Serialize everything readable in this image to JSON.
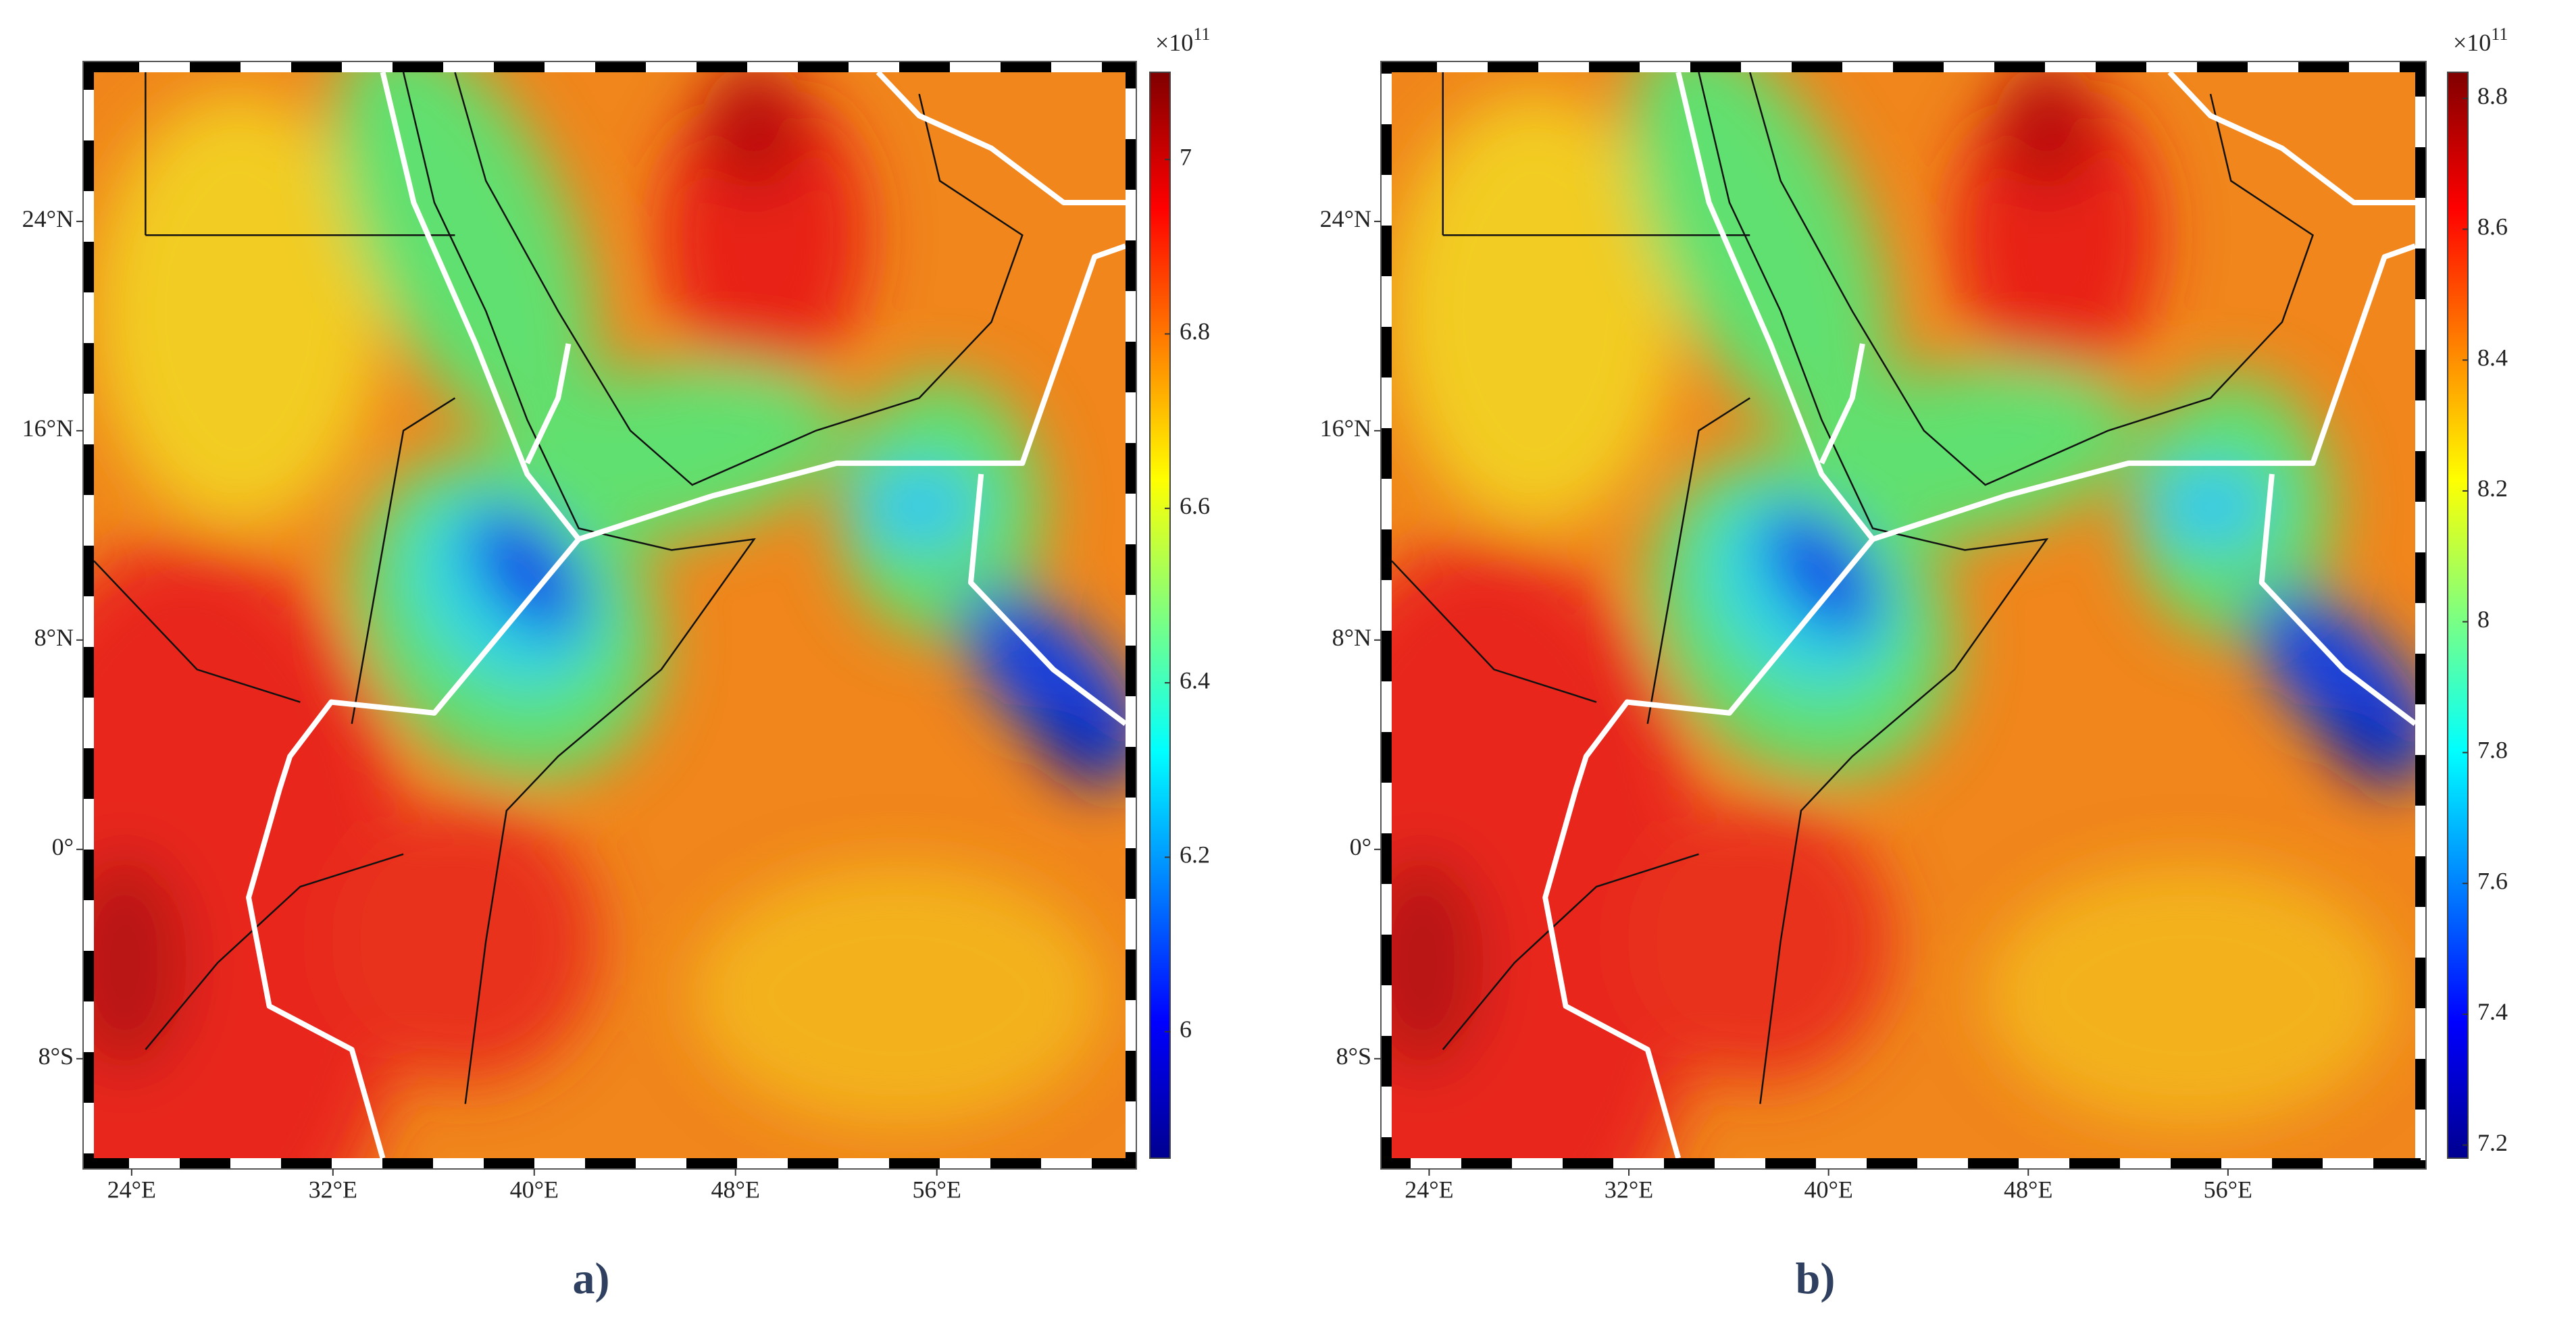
{
  "panels": [
    {
      "label": "a)",
      "xlim": [
        22.5,
        63.5
      ],
      "xticks": [
        {
          "value": 24,
          "label": "24°E"
        },
        {
          "value": 32,
          "label": "32°E"
        },
        {
          "value": 40,
          "label": "40°E"
        },
        {
          "value": 48,
          "label": "48°E"
        },
        {
          "value": 56,
          "label": "56°E"
        }
      ],
      "ylim": [
        -11.8,
        29.7
      ],
      "yticks": [
        {
          "value": 24,
          "label": "24°N"
        },
        {
          "value": 16,
          "label": "16°N"
        },
        {
          "value": 8,
          "label": "8°N"
        },
        {
          "value": 0,
          "label": "0°"
        },
        {
          "value": -8,
          "label": "8°S"
        }
      ],
      "colorbar": {
        "multiplier": "×10",
        "exponent": "11",
        "lim": [
          5.855,
          7.1
        ],
        "ticks": [
          6,
          6.2,
          6.4,
          6.6,
          6.8,
          7
        ]
      }
    },
    {
      "label": "b)",
      "xlim": [
        22.5,
        63.5
      ],
      "xticks": [
        {
          "value": 24,
          "label": "24°E"
        },
        {
          "value": 32,
          "label": "32°E"
        },
        {
          "value": 40,
          "label": "40°E"
        },
        {
          "value": 48,
          "label": "48°E"
        },
        {
          "value": 56,
          "label": "56°E"
        }
      ],
      "ylim": [
        -11.8,
        29.7
      ],
      "yticks": [
        {
          "value": 24,
          "label": "24°N"
        },
        {
          "value": 16,
          "label": "16°N"
        },
        {
          "value": 8,
          "label": "8°N"
        },
        {
          "value": 0,
          "label": "0°"
        },
        {
          "value": -8,
          "label": "8°S"
        }
      ],
      "colorbar": {
        "multiplier": "×10",
        "exponent": "11",
        "lim": [
          7.18,
          8.84
        ],
        "ticks": [
          7.2,
          7.4,
          7.6,
          7.8,
          8,
          8.2,
          8.4,
          8.6,
          8.8
        ]
      }
    }
  ]
}
